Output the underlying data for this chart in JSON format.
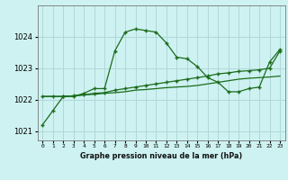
{
  "title": "Graphe pression niveau de la mer (hPa)",
  "background_color": "#cef2f2",
  "grid_color": "#b0d8d8",
  "line_color": "#1a6b1a",
  "x_labels": [
    "0",
    "1",
    "2",
    "3",
    "4",
    "5",
    "6",
    "7",
    "8",
    "9",
    "10",
    "11",
    "12",
    "13",
    "14",
    "15",
    "16",
    "17",
    "18",
    "19",
    "20",
    "21",
    "22",
    "23"
  ],
  "ylim": [
    1020.7,
    1025.0
  ],
  "yticks": [
    1021,
    1022,
    1023,
    1024
  ],
  "series1": [
    1021.2,
    1021.65,
    1022.1,
    1022.1,
    1022.2,
    1022.35,
    1022.35,
    1023.55,
    1024.15,
    1024.25,
    1024.2,
    1024.15,
    1023.8,
    1023.35,
    1023.3,
    1023.05,
    1022.7,
    1022.55,
    1022.25,
    1022.25,
    1022.35,
    1022.4,
    1023.2,
    1023.6
  ],
  "series2": [
    1022.1,
    1022.1,
    1022.1,
    1022.12,
    1022.15,
    1022.17,
    1022.2,
    1022.22,
    1022.25,
    1022.3,
    1022.32,
    1022.35,
    1022.38,
    1022.4,
    1022.42,
    1022.45,
    1022.5,
    1022.55,
    1022.6,
    1022.65,
    1022.68,
    1022.7,
    1022.72,
    1022.75
  ],
  "series3": [
    1022.1,
    1022.1,
    1022.1,
    1022.12,
    1022.15,
    1022.2,
    1022.22,
    1022.3,
    1022.35,
    1022.4,
    1022.45,
    1022.5,
    1022.55,
    1022.6,
    1022.65,
    1022.7,
    1022.75,
    1022.82,
    1022.85,
    1022.9,
    1022.92,
    1022.95,
    1023.0,
    1023.55
  ]
}
